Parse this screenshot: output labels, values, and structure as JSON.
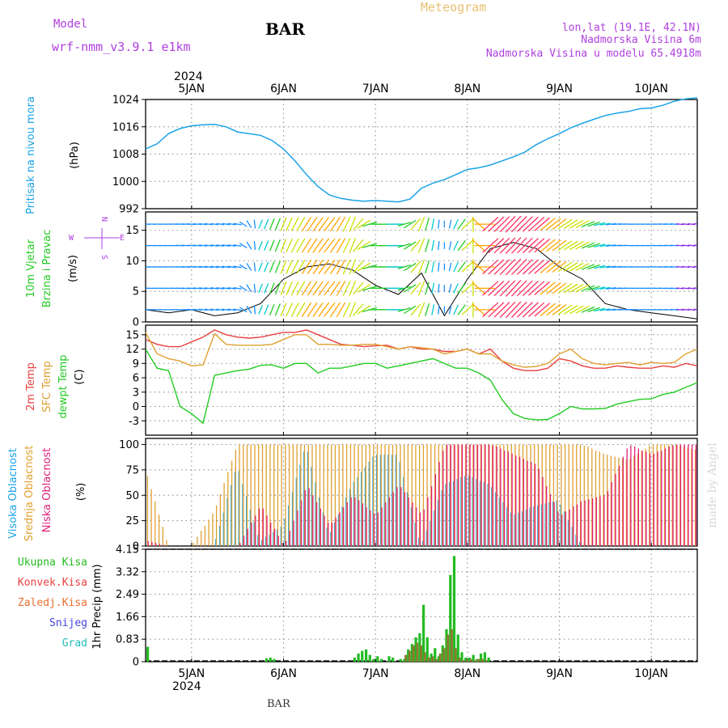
{
  "header": {
    "model_label": "Model",
    "model_name": "wrf-nmm_v3.9.1 e1km",
    "station": "BAR",
    "title": "Meteogram",
    "info_lines": [
      "lon,lat (19.1E, 42.1N)",
      "Nadmorska Visina 6m",
      "Nadmorska Visina u modelu 65.4918m"
    ],
    "footer_station": "BAR",
    "watermark": "made by Angel"
  },
  "colors": {
    "pressure": "#1aa3e8",
    "wind_speed": "#000000",
    "temp2m": "#e84040",
    "sfc_temp": "#e0a030",
    "dewpoint": "#22cc22",
    "high_cloud": "#1aa3e8",
    "mid_cloud": "#e0a030",
    "low_cloud": "#e0207a",
    "total_precip": "#22bb22",
    "conv_precip": "#e84040",
    "model_text": "#b040e0",
    "title_text": "#e8c070",
    "grid": "#999999"
  },
  "chart_data": [
    {
      "type": "line",
      "name": "pressure",
      "ylabel_lines": [
        "Pritisak na nivou mora",
        "(hPa)"
      ],
      "ylim": [
        992,
        1024
      ],
      "yticks": [
        992,
        1000,
        1008,
        1016,
        1024
      ],
      "x_hours": [
        0,
        3,
        6,
        9,
        12,
        15,
        18,
        21,
        24,
        27,
        30,
        33,
        36,
        39,
        42,
        45,
        48,
        51,
        54,
        57,
        60,
        63,
        66,
        69,
        72,
        75,
        78,
        81,
        84,
        87,
        90,
        93,
        96,
        99,
        102,
        105,
        108,
        111,
        114,
        117,
        120,
        123,
        126,
        129,
        132,
        135,
        138,
        141,
        144
      ],
      "values": [
        1009.5,
        1011,
        1014,
        1015.5,
        1016.3,
        1016.6,
        1016.7,
        1016,
        1014.5,
        1014,
        1013.5,
        1012,
        1009.5,
        1006,
        1002,
        998.5,
        996,
        995,
        994.5,
        994.2,
        994.4,
        994.2,
        994,
        994.8,
        998,
        999.5,
        1000.5,
        1002,
        1003.5,
        1004,
        1004.8,
        1006,
        1007.2,
        1008.6,
        1010.8,
        1012.5,
        1014,
        1015.7,
        1017,
        1018.2,
        1019.3,
        1020,
        1020.5,
        1021.3,
        1021.5,
        1022.3,
        1023.5,
        1024.2,
        1024.5
      ]
    },
    {
      "type": "barbs",
      "name": "wind",
      "ylabel_lines": [
        "10m Vjetar",
        "Brzina i Pravac",
        "(m/s)"
      ],
      "compass": [
        "N",
        "E",
        "S",
        "W"
      ],
      "ylim": [
        0,
        18
      ],
      "yticks": [
        0,
        5,
        10,
        15
      ],
      "x_hours": [
        0,
        6,
        12,
        18,
        24,
        30,
        36,
        42,
        48,
        54,
        60,
        66,
        72,
        78,
        84,
        90,
        96,
        102,
        108,
        114,
        120,
        126,
        132,
        138,
        144
      ],
      "speed": [
        2,
        1.5,
        2,
        1,
        1.5,
        3,
        7,
        9,
        9.5,
        8.5,
        6,
        4.5,
        8,
        1,
        7,
        12,
        13,
        12,
        9,
        7,
        3,
        2,
        1.5,
        1,
        0.5
      ],
      "direction_deg": [
        90,
        90,
        95,
        100,
        100,
        200,
        200,
        210,
        215,
        200,
        270,
        270,
        200,
        180,
        225,
        45,
        40,
        45,
        50,
        60,
        80,
        90,
        90,
        95,
        100
      ]
    },
    {
      "type": "line",
      "name": "temperature",
      "ylabel_lines": [
        "2m Temp",
        "SFC Temp",
        "dewpt Temp",
        "(C)"
      ],
      "ylim": [
        -6,
        17
      ],
      "yticks": [
        -3,
        0,
        3,
        6,
        9,
        12,
        15
      ],
      "x_hours": [
        0,
        3,
        6,
        9,
        12,
        15,
        18,
        21,
        24,
        27,
        30,
        33,
        36,
        39,
        42,
        45,
        48,
        51,
        54,
        57,
        60,
        63,
        66,
        69,
        72,
        75,
        78,
        81,
        84,
        87,
        90,
        93,
        96,
        99,
        102,
        105,
        108,
        111,
        114,
        117,
        120,
        123,
        126,
        129,
        132,
        135,
        138,
        141,
        144
      ],
      "series": [
        {
          "name": "2m Temp",
          "values": [
            14,
            13,
            12.5,
            12.5,
            13.5,
            14.5,
            16,
            15,
            14.5,
            14.3,
            14.5,
            15,
            15.5,
            15.5,
            16,
            15,
            14,
            13,
            12.8,
            12.5,
            12.7,
            12.8,
            12,
            12.5,
            12,
            12,
            11.5,
            11.5,
            12,
            11,
            12,
            9.5,
            8,
            7.5,
            7.5,
            8,
            10,
            9.5,
            8.5,
            8,
            8,
            8.5,
            8.2,
            8,
            8,
            8.5,
            8.2,
            9,
            8.5
          ]
        },
        {
          "name": "SFC Temp",
          "values": [
            15.5,
            11,
            10,
            9.5,
            8.5,
            8.7,
            15.2,
            13,
            12.8,
            12.8,
            12.8,
            13,
            14,
            15,
            15,
            13,
            13,
            12.8,
            12.8,
            13,
            13,
            12.5,
            12,
            12.5,
            12.3,
            12,
            11,
            11.5,
            12,
            11,
            11,
            9.5,
            8.7,
            8.2,
            8.4,
            9,
            11,
            12,
            10,
            9,
            8.7,
            9,
            9.2,
            8.7,
            9.2,
            9,
            9.2,
            11,
            12
          ]
        },
        {
          "name": "dewpt Temp",
          "values": [
            12,
            8,
            7.5,
            0,
            -1.5,
            -3.5,
            6.5,
            7,
            7.5,
            7.8,
            8.6,
            8.7,
            8,
            9,
            9,
            7,
            8,
            8,
            8.5,
            9,
            9,
            8,
            8.5,
            9,
            9.5,
            10,
            9,
            8,
            8,
            7,
            5.5,
            1.5,
            -1.5,
            -2.5,
            -2.8,
            -2.7,
            -1.5,
            0,
            -0.5,
            -0.5,
            -0.4,
            0.5,
            1,
            1.5,
            1.6,
            2.5,
            3,
            4,
            5
          ]
        }
      ]
    },
    {
      "type": "bar",
      "name": "cloud_cover",
      "ylabel_lines": [
        "Visoka Oblacnost",
        "Srednja Oblacnost",
        "Niska Oblacnost",
        "(%)"
      ],
      "ylim": [
        0,
        100
      ],
      "yticks": [
        0,
        25,
        50,
        75,
        100
      ],
      "x_hours": [
        0,
        6,
        12,
        18,
        24,
        30,
        36,
        42,
        48,
        54,
        60,
        66,
        72,
        78,
        84,
        90,
        96,
        102,
        108,
        114,
        120,
        126,
        132,
        138,
        144
      ],
      "series": [
        {
          "name": "Visoka Oblacnost",
          "values": [
            0,
            0,
            0,
            0,
            80,
            5,
            20,
            100,
            10,
            60,
            90,
            90,
            0,
            60,
            70,
            60,
            30,
            40,
            45,
            0,
            0,
            0,
            0,
            0,
            0
          ]
        },
        {
          "name": "Srednja Oblacnost",
          "values": [
            75,
            0,
            0,
            35,
            100,
            100,
            100,
            100,
            100,
            100,
            100,
            100,
            100,
            100,
            100,
            100,
            100,
            100,
            100,
            100,
            90,
            85,
            100,
            100,
            95
          ]
        },
        {
          "name": "Niska Oblacnost",
          "values": [
            5,
            0,
            0,
            0,
            0,
            40,
            0,
            60,
            20,
            50,
            30,
            60,
            30,
            100,
            100,
            100,
            90,
            80,
            30,
            45,
            50,
            100,
            90,
            100,
            100
          ]
        }
      ]
    },
    {
      "type": "bar",
      "name": "precipitation",
      "legend": [
        "Ukupna Kisa",
        "Konvek.Kisa",
        "Zaledj.Kisa",
        "Snijeg",
        "Grad"
      ],
      "ylabel_lines": [
        "1hr Precip (mm)"
      ],
      "ylim": [
        0,
        4.15
      ],
      "yticks": [
        0,
        0.83,
        1.66,
        2.49,
        3.32,
        4.15
      ],
      "ytick_labels": [
        "0",
        "0.83",
        "1.66",
        "2.49",
        "3.32",
        "4.15"
      ],
      "x_hours": [
        0,
        31,
        32,
        33,
        54,
        55,
        56,
        57,
        58,
        59,
        60,
        61,
        63,
        64,
        66,
        67,
        68,
        69,
        70,
        71,
        72,
        73,
        74,
        75,
        76,
        77,
        78,
        79,
        80,
        81,
        82,
        83,
        84,
        85,
        86,
        87,
        88,
        89
      ],
      "series": [
        {
          "name": "Ukupna Kisa",
          "values": [
            0.55,
            0.12,
            0.15,
            0.1,
            0.15,
            0.3,
            0.4,
            0.45,
            0.25,
            0.1,
            0.2,
            0.1,
            0.2,
            0.15,
            0.1,
            0.1,
            0.45,
            0.65,
            0.9,
            1.05,
            2.1,
            0.9,
            0.3,
            0.5,
            0.2,
            0.6,
            1.2,
            3.2,
            3.9,
            1.0,
            0.35,
            0.15,
            0.15,
            0.25,
            0.1,
            0.3,
            0.35,
            0.15
          ]
        },
        {
          "name": "Konvek.Kisa",
          "values": [
            0,
            0,
            0,
            0,
            0,
            0,
            0,
            0,
            0,
            0,
            0,
            0,
            0,
            0,
            0,
            0,
            0.25,
            0.4,
            0.6,
            0.7,
            0.6,
            0.35,
            0.15,
            0.2,
            0.1,
            0.3,
            0.5,
            1.0,
            1.2,
            0.5,
            0.15,
            0.05,
            0.05,
            0.1,
            0.05,
            0.1,
            0.1,
            0.05
          ]
        }
      ]
    }
  ],
  "time_axis": {
    "year": "2024",
    "days": [
      "5JAN",
      "6JAN",
      "7JAN",
      "8JAN",
      "9JAN",
      "10JAN"
    ],
    "day_hours": [
      12,
      36,
      60,
      84,
      108,
      132
    ],
    "range_hours": [
      0,
      144
    ]
  }
}
